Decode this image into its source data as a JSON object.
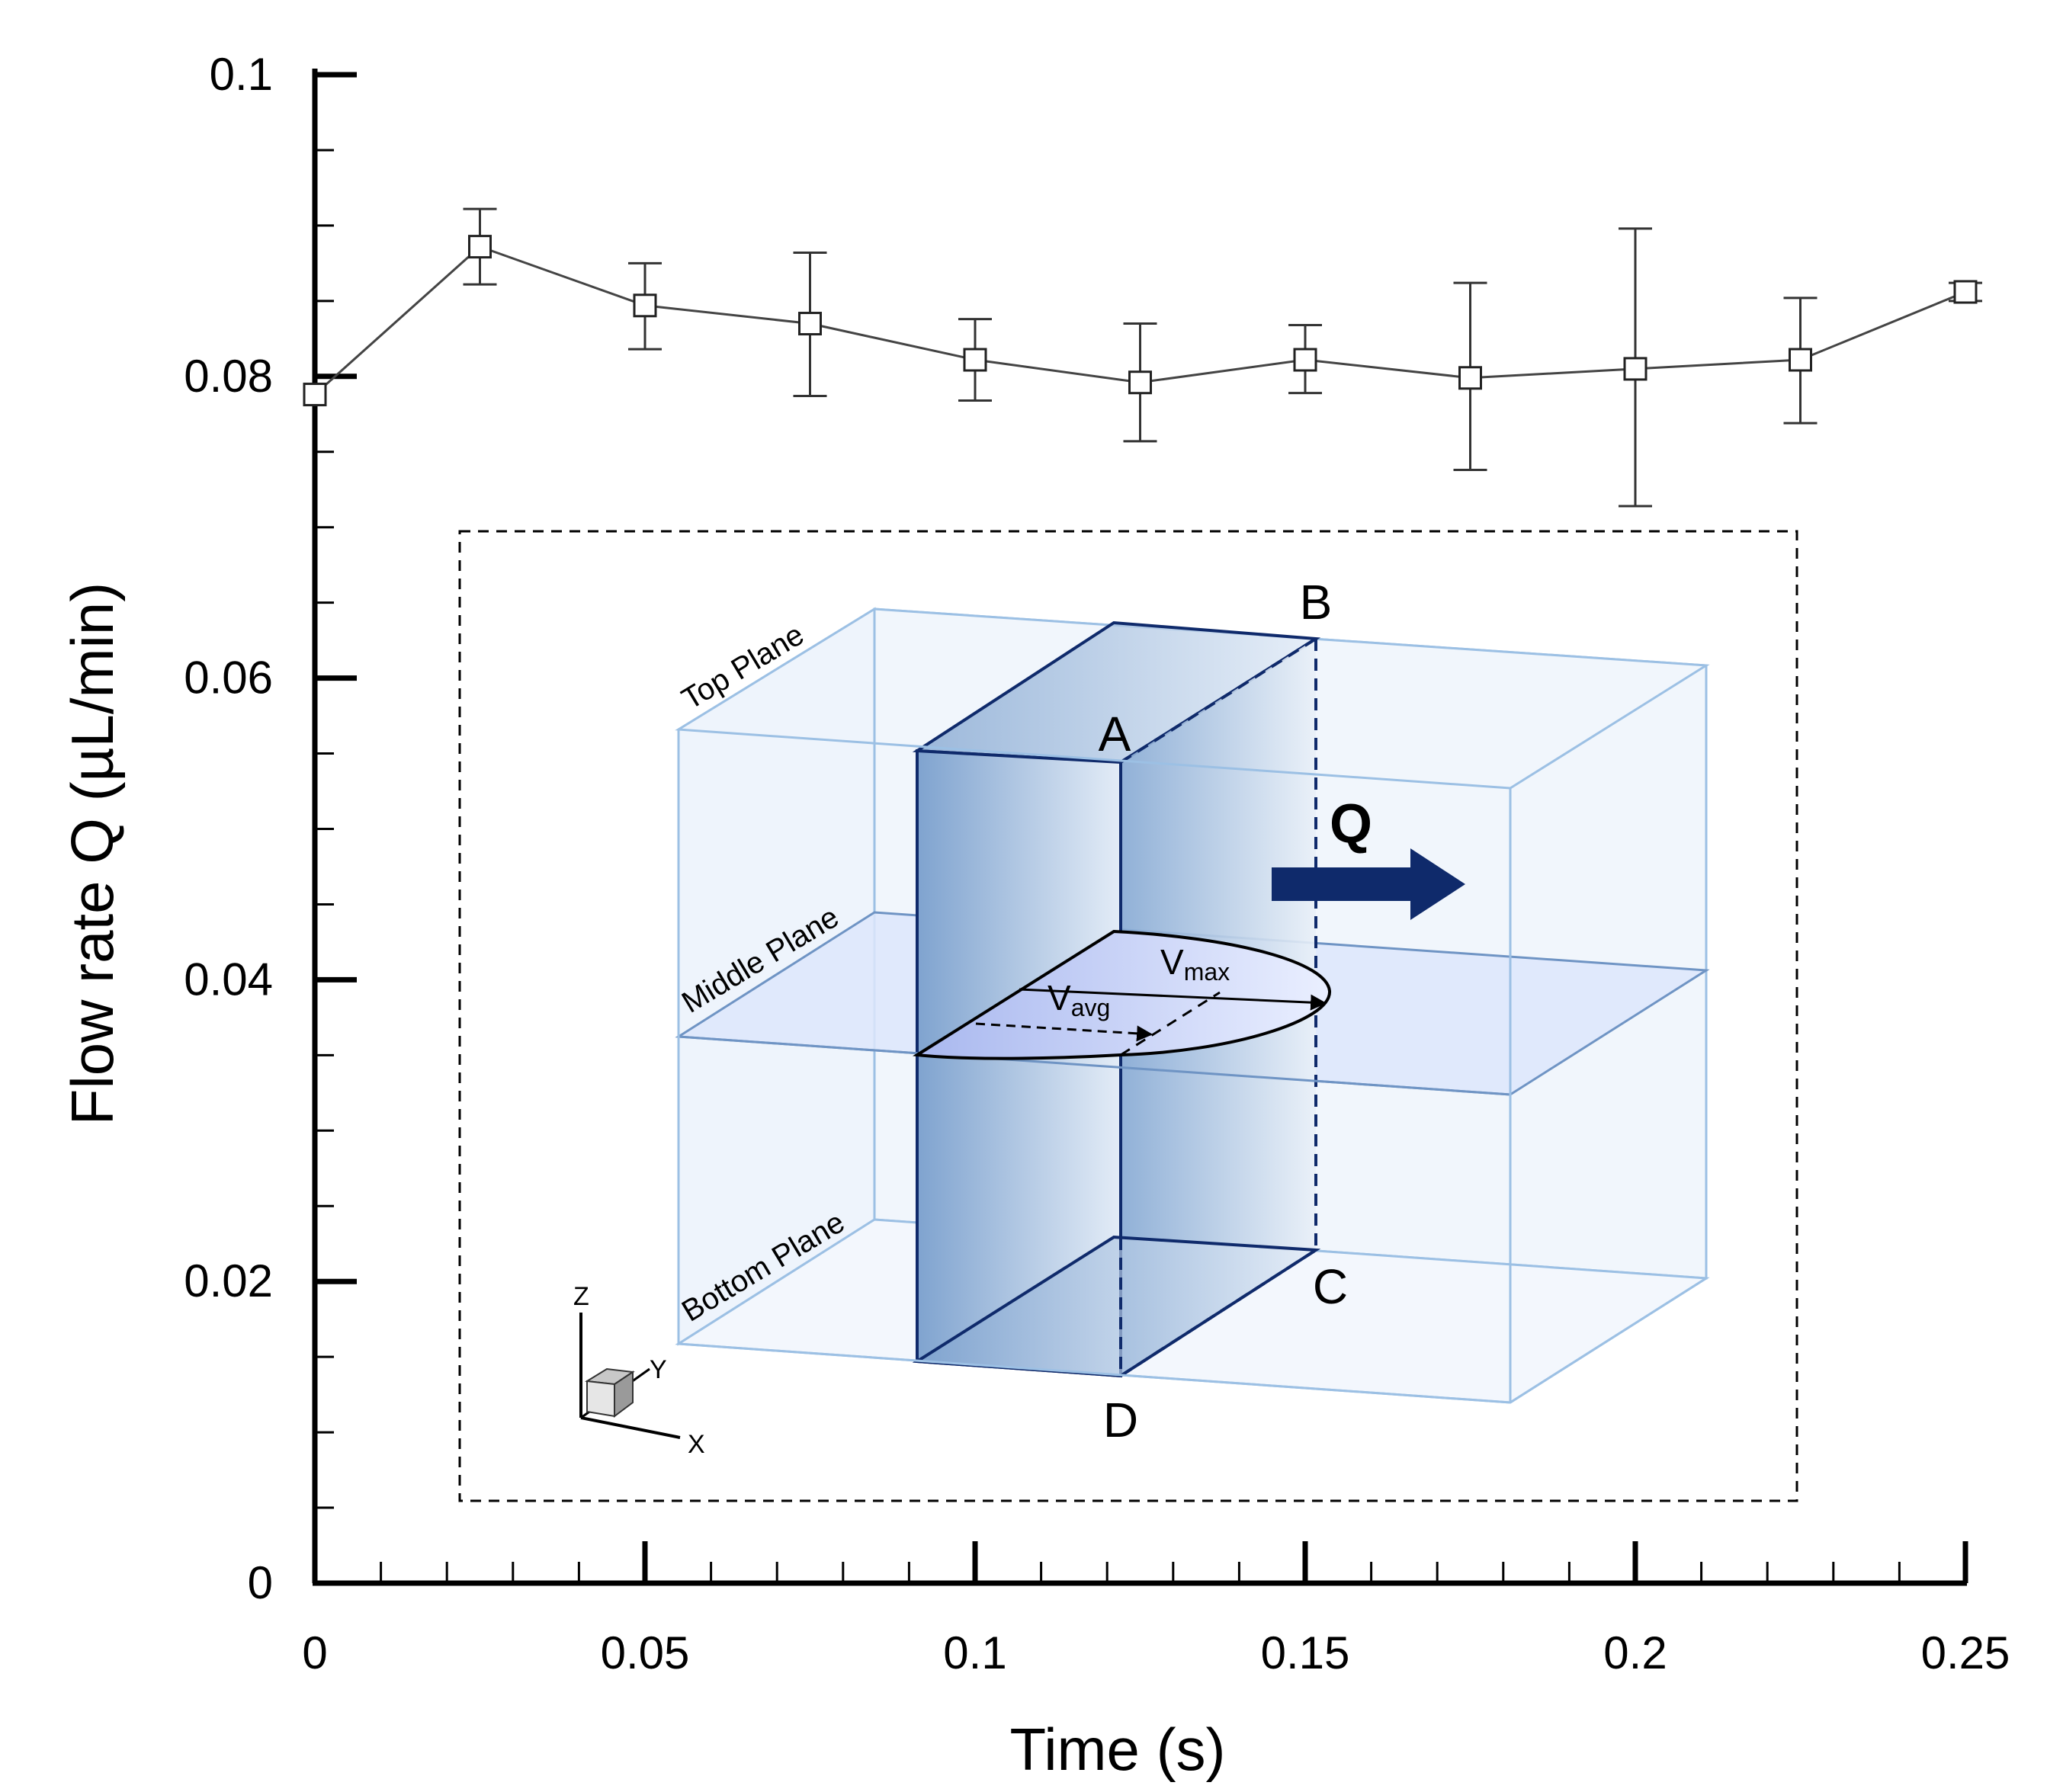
{
  "chart_data": {
    "type": "line",
    "title": "",
    "xlabel": "Time (s)",
    "ylabel": "Flow rate Q (µL/min)",
    "xlim": [
      0,
      0.25
    ],
    "ylim": [
      0,
      0.1
    ],
    "x_ticks": [
      0,
      0.05,
      0.1,
      0.15,
      0.2,
      0.25
    ],
    "x_tick_labels": [
      "0",
      "0.05",
      "0.1",
      "0.15",
      "0.2",
      "0.25"
    ],
    "y_ticks": [
      0,
      0.02,
      0.04,
      0.06,
      0.08,
      0.1
    ],
    "y_tick_labels": [
      "0",
      "0.02",
      "0.04",
      "0.06",
      "0.08",
      "0.1"
    ],
    "grid": false,
    "series": [
      {
        "name": "Flow rate Q",
        "marker": "square",
        "x": [
          0,
          0.025,
          0.05,
          0.075,
          0.1,
          0.125,
          0.15,
          0.175,
          0.2,
          0.225,
          0.25
        ],
        "y": [
          0.0788,
          0.0886,
          0.0847,
          0.0835,
          0.0811,
          0.0796,
          0.0811,
          0.0799,
          0.0805,
          0.0811,
          0.0856
        ],
        "err_low": [
          0.0788,
          0.0861,
          0.0818,
          0.0787,
          0.0784,
          0.0757,
          0.0789,
          0.0738,
          0.0714,
          0.0769,
          0.085
        ],
        "err_high": [
          0.0788,
          0.0911,
          0.0875,
          0.0882,
          0.0838,
          0.0835,
          0.0834,
          0.0862,
          0.0898,
          0.0852,
          0.0862
        ]
      }
    ],
    "inset": {
      "labels": {
        "top_plane": "Top Plane",
        "middle_plane": "Middle Plane",
        "bottom_plane": "Bottom Plane",
        "a": "A",
        "b": "B",
        "c": "C",
        "d": "D",
        "q": "Q",
        "v_max_base": "V",
        "v_max_sub": "max",
        "v_avg_base": "V",
        "v_avg_sub": "avg",
        "axis_z": "Z",
        "axis_y": "Y",
        "axis_x": "X"
      },
      "colors": {
        "navy": "#0f2a6b",
        "box_edge": "#9cc0e4",
        "box_fill": "#eef4fc",
        "middle_plane_fill": "#dde6fb",
        "panel_dark": "#8fb1d8",
        "panel_light": "#e6eef8",
        "line_color": "#444444"
      }
    }
  }
}
